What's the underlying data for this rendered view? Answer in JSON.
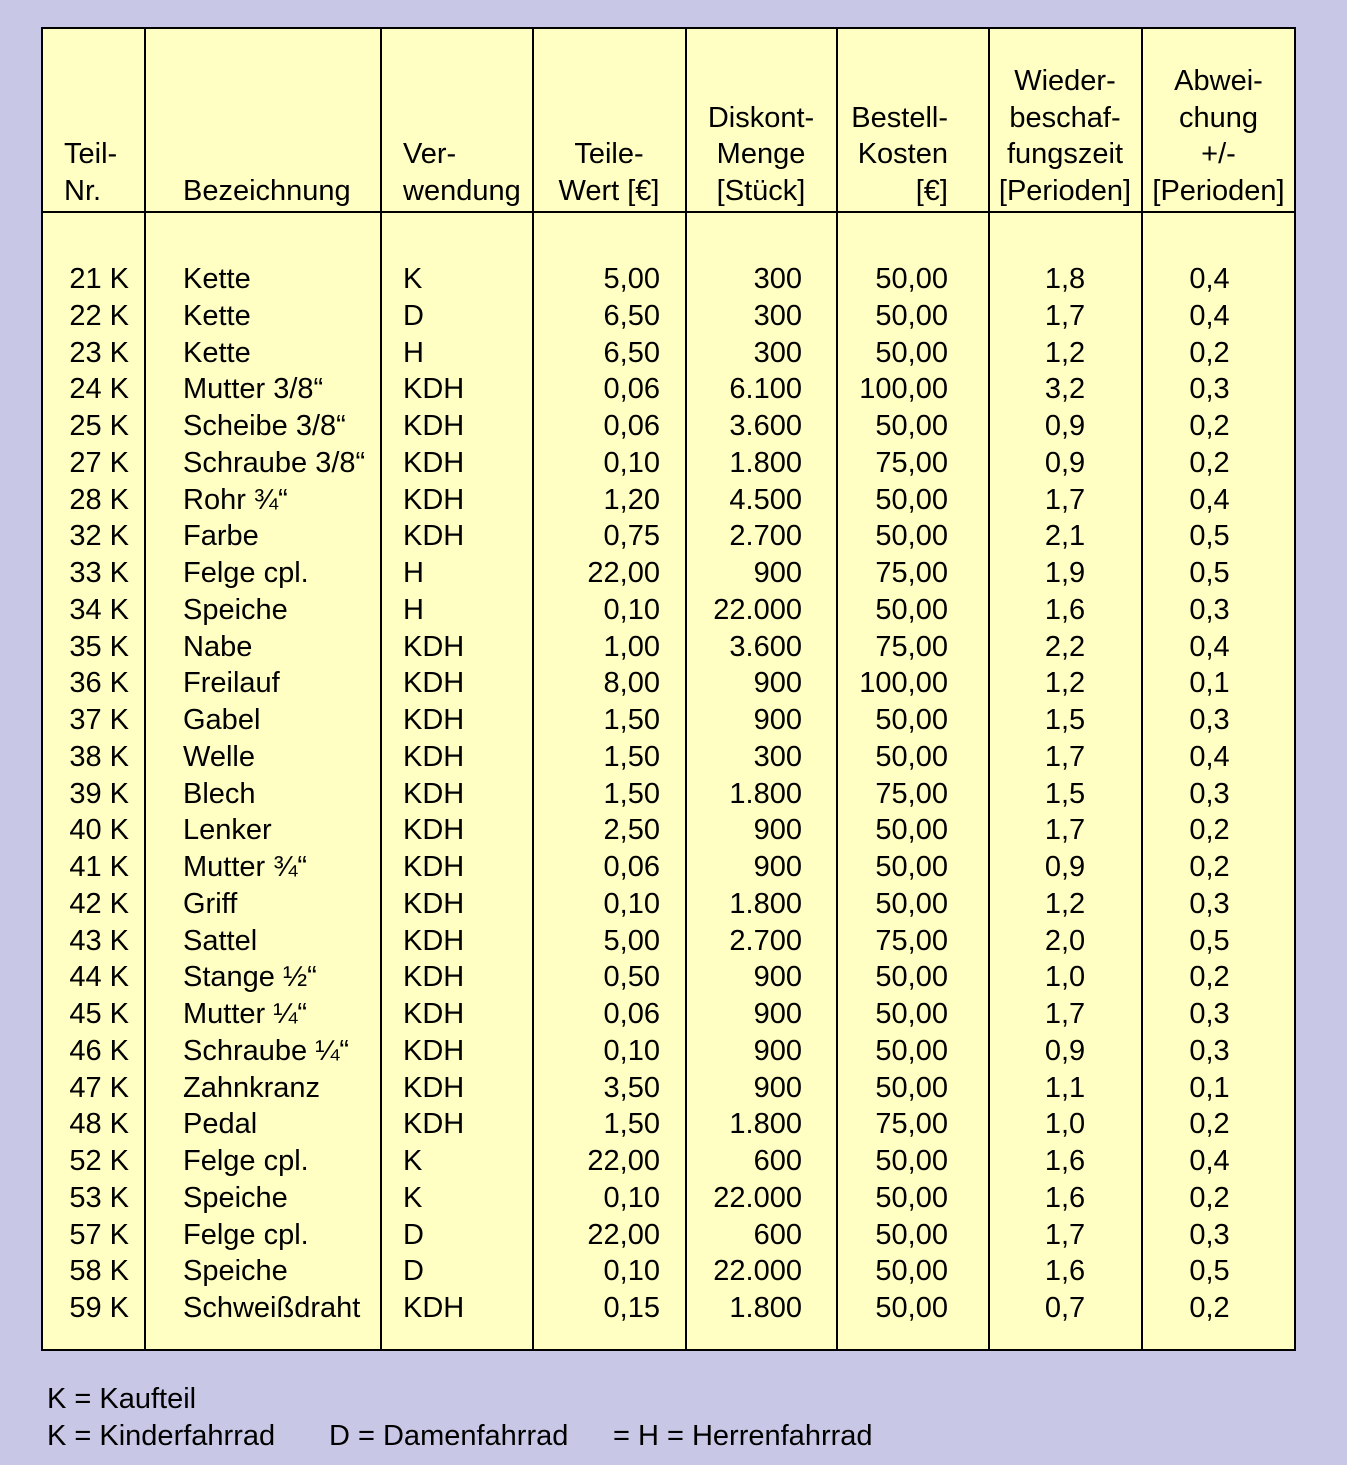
{
  "headers": {
    "teil_nr": "Teil-\nNr.",
    "bezeichnung": "Bezeichnung",
    "verwendung": "Ver-\nwendung",
    "teile_wert": "Teile-\nWert [€]",
    "diskont_menge": "Diskont-\nMenge\n[Stück]",
    "bestell_kosten": "Bestell-\nKosten\n[€]",
    "wiederbeschaffungszeit": "Wieder-\nbeschaf-\nfungszeit\n[Perioden]",
    "abweichung": "Abwei-\nchung\n+/-\n[Perioden]"
  },
  "rows": [
    [
      "21 K",
      "Kette",
      "K",
      "5,00",
      "300",
      "50,00",
      "1,8",
      "0,4"
    ],
    [
      "22 K",
      "Kette",
      "D",
      "6,50",
      "300",
      "50,00",
      "1,7",
      "0,4"
    ],
    [
      "23 K",
      "Kette",
      "H",
      "6,50",
      "300",
      "50,00",
      "1,2",
      "0,2"
    ],
    [
      "24 K",
      "Mutter 3/8“",
      "KDH",
      "0,06",
      "6.100",
      "100,00",
      "3,2",
      "0,3"
    ],
    [
      "25 K",
      "Scheibe 3/8“",
      "KDH",
      "0,06",
      "3.600",
      "50,00",
      "0,9",
      "0,2"
    ],
    [
      "27 K",
      "Schraube 3/8“",
      "KDH",
      "0,10",
      "1.800",
      "75,00",
      "0,9",
      "0,2"
    ],
    [
      "28 K",
      "Rohr ¾“",
      "KDH",
      "1,20",
      "4.500",
      "50,00",
      "1,7",
      "0,4"
    ],
    [
      "32 K",
      "Farbe",
      "KDH",
      "0,75",
      "2.700",
      "50,00",
      "2,1",
      "0,5"
    ],
    [
      "33 K",
      "Felge cpl.",
      "H",
      "22,00",
      "900",
      "75,00",
      "1,9",
      "0,5"
    ],
    [
      "34 K",
      "Speiche",
      "H",
      "0,10",
      "22.000",
      "50,00",
      "1,6",
      "0,3"
    ],
    [
      "35 K",
      "Nabe",
      "KDH",
      "1,00",
      "3.600",
      "75,00",
      "2,2",
      "0,4"
    ],
    [
      "36 K",
      "Freilauf",
      "KDH",
      "8,00",
      "900",
      "100,00",
      "1,2",
      "0,1"
    ],
    [
      "37 K",
      "Gabel",
      "KDH",
      "1,50",
      "900",
      "50,00",
      "1,5",
      "0,3"
    ],
    [
      "38 K",
      "Welle",
      "KDH",
      "1,50",
      "300",
      "50,00",
      "1,7",
      "0,4"
    ],
    [
      "39 K",
      "Blech",
      "KDH",
      "1,50",
      "1.800",
      "75,00",
      "1,5",
      "0,3"
    ],
    [
      "40 K",
      "Lenker",
      "KDH",
      "2,50",
      "900",
      "50,00",
      "1,7",
      "0,2"
    ],
    [
      "41 K",
      "Mutter ¾“",
      "KDH",
      "0,06",
      "900",
      "50,00",
      "0,9",
      "0,2"
    ],
    [
      "42 K",
      "Griff",
      "KDH",
      "0,10",
      "1.800",
      "50,00",
      "1,2",
      "0,3"
    ],
    [
      "43 K",
      "Sattel",
      "KDH",
      "5,00",
      "2.700",
      "75,00",
      "2,0",
      "0,5"
    ],
    [
      "44 K",
      "Stange ½“",
      "KDH",
      "0,50",
      "900",
      "50,00",
      "1,0",
      "0,2"
    ],
    [
      "45 K",
      "Mutter ¼“",
      "KDH",
      "0,06",
      "900",
      "50,00",
      "1,7",
      "0,3"
    ],
    [
      "46 K",
      "Schraube ¼“",
      "KDH",
      "0,10",
      "900",
      "50,00",
      "0,9",
      "0,3"
    ],
    [
      "47 K",
      "Zahnkranz",
      "KDH",
      "3,50",
      "900",
      "50,00",
      "1,1",
      "0,1"
    ],
    [
      "48 K",
      "Pedal",
      "KDH",
      "1,50",
      "1.800",
      "75,00",
      "1,0",
      "0,2"
    ],
    [
      "52 K",
      "Felge cpl.",
      "K",
      "22,00",
      "600",
      "50,00",
      "1,6",
      "0,4"
    ],
    [
      "53 K",
      "Speiche",
      "K",
      "0,10",
      "22.000",
      "50,00",
      "1,6",
      "0,2"
    ],
    [
      "57 K",
      "Felge cpl.",
      "D",
      "22,00",
      "600",
      "50,00",
      "1,7",
      "0,3"
    ],
    [
      "58 K",
      "Speiche",
      "D",
      "0,10",
      "22.000",
      "50,00",
      "1,6",
      "0,5"
    ],
    [
      "59 K",
      "Schweißdraht",
      "KDH",
      "0,15",
      "1.800",
      "50,00",
      "0,7",
      "0,2"
    ]
  ],
  "legend": {
    "line1": "K = Kaufteil",
    "kinder": "K = Kinderfahrrad",
    "damen": "D = Damenfahrrad",
    "herren": "= H = Herrenfahrrad"
  },
  "colors": {
    "background": "#c8c8e6",
    "table_fill": "#ffffc4",
    "border": "#000000"
  }
}
